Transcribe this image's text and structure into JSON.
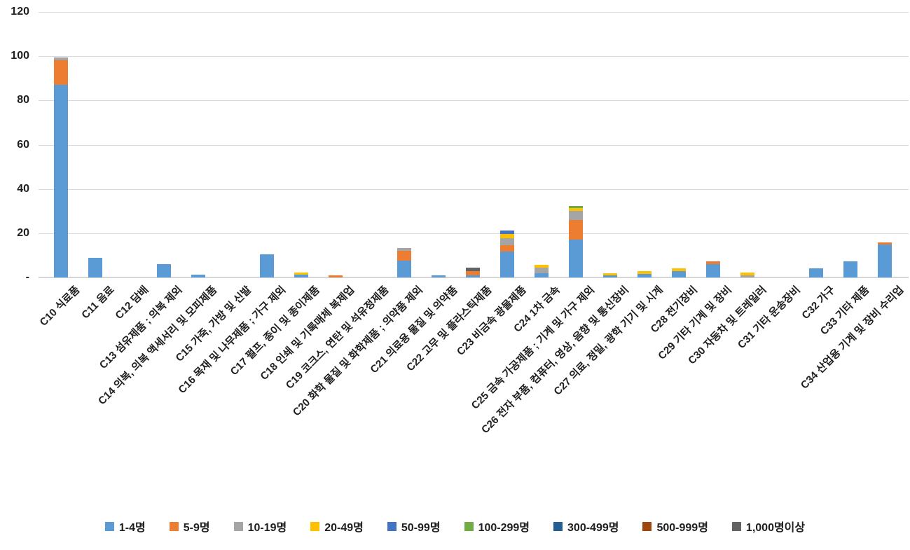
{
  "chart_data": {
    "type": "bar",
    "stacked": true,
    "title": "",
    "xlabel": "",
    "ylabel": "",
    "ylim": [
      0,
      120
    ],
    "yticks": [
      120,
      100,
      80,
      60,
      40,
      20,
      0
    ],
    "ytick_labels": [
      "120",
      "100",
      "80",
      "60",
      "40",
      "20",
      "-"
    ],
    "grid": "horizontal-gridlines-on",
    "legend_position": "bottom",
    "categories": [
      "C10 식료품",
      "C11 음료",
      "C12 담배",
      "C13 섬유제품 ; 의복 제외",
      "C14 의복, 의복 액세서리 및 모피제품",
      "C15 가죽, 가방 및 신발",
      "C16 목재 및 나무제품 ; 가구 제외",
      "C17 펄프, 종이 및 종이제품",
      "C18 인쇄 및 기록매체 복제업",
      "C19 코크스, 연탄 및 석유정제품",
      "C20 화학 물질 및 화학제품 ; 의약품 제외",
      "C21 의료용 물질 및 의약품",
      "C22 고무 및 플라스틱제품",
      "C23 비금속 광물제품",
      "C24 1차 금속",
      "C25 금속 가공제품 ; 기계 및 가구 제외",
      "C26 전자 부품, 컴퓨터, 영상, 음향 및 통신장비",
      "C27 의료, 정밀, 광학 기기 및 시계",
      "C28 전기장비",
      "C29 기타 기계 및 장비",
      "C30 자동차 및 트레일러",
      "C31 기타 운송장비",
      "C32 가구",
      "C33 기타 제품",
      "C34 산업용 기계 및 장비 수리업"
    ],
    "series": [
      {
        "name": "1-4명",
        "color": "#5B9BD5",
        "values": [
          87,
          9,
          0,
          6,
          1.2,
          0,
          10.4,
          1.3,
          0,
          0,
          7.6,
          1,
          0.9,
          11.7,
          1.9,
          17.2,
          0.9,
          1.6,
          2.8,
          6.1,
          0,
          0,
          4.2,
          7.4,
          15
        ]
      },
      {
        "name": "5-9명",
        "color": "#ED7D31",
        "values": [
          11,
          0,
          0,
          0,
          0,
          0,
          0,
          0,
          1,
          0,
          4.4,
          0,
          1.9,
          2.9,
          0,
          8.7,
          0,
          0,
          0,
          1.2,
          0,
          0,
          0,
          0,
          0.9
        ]
      },
      {
        "name": "10-19명",
        "color": "#A5A5A5",
        "values": [
          1.5,
          0,
          0,
          0,
          0,
          0,
          0,
          0,
          0,
          0,
          1.3,
          0,
          0,
          3.2,
          2.4,
          4.3,
          0,
          0,
          0,
          0,
          1,
          0,
          0,
          0,
          0
        ]
      },
      {
        "name": "20-49명",
        "color": "#FFC000",
        "values": [
          0,
          0,
          0,
          0,
          0,
          0,
          0,
          0.9,
          0,
          0,
          0,
          0,
          0,
          1.9,
          1.3,
          1,
          1,
          1.3,
          1.4,
          0,
          1.2,
          0,
          0,
          0,
          0
        ]
      },
      {
        "name": "50-99명",
        "color": "#4472C4",
        "values": [
          0,
          0,
          0,
          0,
          0,
          0,
          0,
          0,
          0,
          0,
          0,
          0,
          0,
          1.4,
          0,
          0,
          0,
          0,
          0,
          0,
          0,
          0,
          0,
          0,
          0
        ]
      },
      {
        "name": "100-299명",
        "color": "#70AD47",
        "values": [
          0,
          0,
          0,
          0,
          0,
          0,
          0,
          0,
          0,
          0,
          0,
          0,
          0,
          0,
          0,
          1,
          0,
          0,
          0,
          0,
          0,
          0,
          0,
          0,
          0
        ]
      },
      {
        "name": "300-499명",
        "color": "#255E91",
        "values": [
          0,
          0,
          0,
          0,
          0,
          0,
          0,
          0,
          0,
          0,
          0,
          0,
          0,
          0,
          0,
          0,
          0,
          0,
          0,
          0,
          0,
          0,
          0,
          0,
          0
        ]
      },
      {
        "name": "500-999명",
        "color": "#9E480E",
        "values": [
          0,
          0,
          0,
          0,
          0,
          0,
          0,
          0,
          0,
          0,
          0,
          0,
          0,
          0,
          0,
          0,
          0,
          0,
          0,
          0,
          0,
          0,
          0,
          0,
          0
        ]
      },
      {
        "name": "1,000명이상",
        "color": "#636363",
        "values": [
          0,
          0,
          0,
          0,
          0,
          0,
          0,
          0,
          0,
          0,
          0,
          0,
          1.5,
          0,
          0,
          0,
          0,
          0,
          0,
          0,
          0,
          0,
          0,
          0,
          0
        ]
      }
    ]
  }
}
